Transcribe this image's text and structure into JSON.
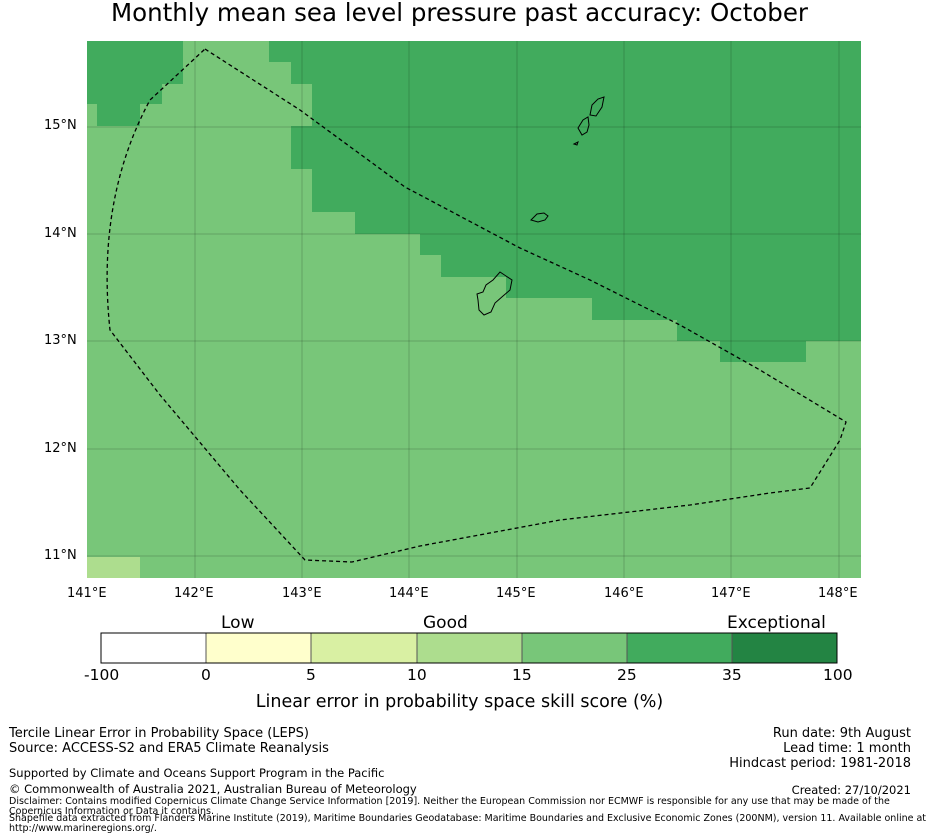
{
  "title": "Monthly mean sea level pressure past accuracy: October",
  "map": {
    "lat_labels": [
      "15°N",
      "14°N",
      "13°N",
      "12°N",
      "11°N"
    ],
    "lon_labels": [
      "141°E",
      "142°E",
      "143°E",
      "144°E",
      "145°E",
      "146°E",
      "147°E",
      "148°E"
    ],
    "colors": {
      "band_25_35": "#41ab5d",
      "band_15_25": "#78c679",
      "band_10_15": "#addd8e",
      "boundary": "#000000"
    }
  },
  "colorbar": {
    "categories": [
      "Low",
      "Good",
      "Exceptional"
    ],
    "ticks": [
      "-100",
      "0",
      "5",
      "10",
      "15",
      "25",
      "35",
      "100"
    ],
    "colors": [
      "#ffffff",
      "#ffffcc",
      "#d9f0a3",
      "#addd8e",
      "#78c679",
      "#41ab5d",
      "#238443"
    ],
    "label": "Linear error in probability space skill score (%)"
  },
  "footer": {
    "left1": "Tercile Linear Error in Probability Space (LEPS)",
    "left2": "Source: ACCESS-S2 and ERA5 Climate Reanalysis",
    "support": "Supported by Climate and Oceans Support Program in the Pacific",
    "copyright": "© Commonwealth of Australia 2021, Australian Bureau of Meteorology",
    "disclaimer1": "Disclaimer: Contains modified Copernicus Climate Change Service Information [2019]. Neither the European Commission nor ECMWF is responsible for any use that may be made of the",
    "disclaimer2": "Copernicus Information or Data it contains.",
    "shapefile1": "Shapefile data extracted from Flanders Marine Institute (2019), Maritime Boundaries Geodatabase: Maritime Boundaries and Exclusive Economic Zones (200NM), version 11. Available online at",
    "shapefile2": "http://www.marineregions.org/.",
    "run_date": "Run date: 9th August",
    "lead_time": "Lead time: 1 month",
    "hindcast": "Hindcast period: 1981-2018",
    "created": "Created: 27/10/2021"
  }
}
